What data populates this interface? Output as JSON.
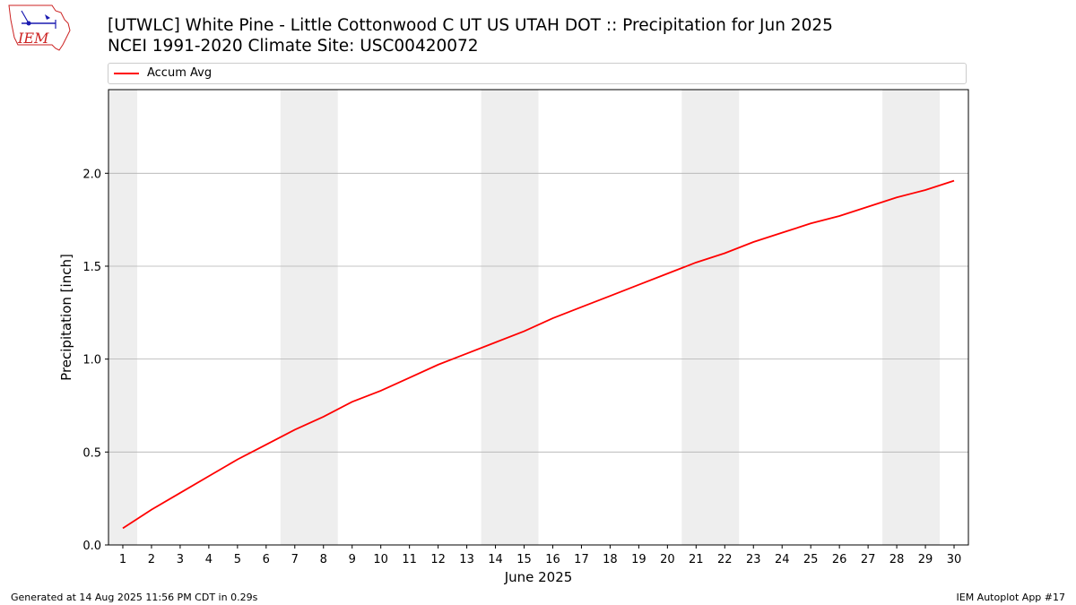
{
  "header": {
    "title_line1": "[UTWLC] White Pine - Little Cottonwood C UT US UTAH DOT :: Precipitation for Jun 2025",
    "title_line2": "NCEI 1991-2020 Climate Site: USC00420072"
  },
  "logo": {
    "text": "IEM",
    "icon": "iem-logo-icon"
  },
  "footer": {
    "generated": "Generated at 14 Aug 2025 11:56 PM CDT in 0.29s",
    "app": "IEM Autoplot App #17"
  },
  "colors": {
    "series": "#ff0000",
    "weekend_band": "#eeeeee",
    "grid": "#b0b0b0"
  },
  "chart_data": {
    "type": "line",
    "xlabel": "June 2025",
    "ylabel": "Precipitation [inch]",
    "xlim": [
      0.5,
      30.5
    ],
    "ylim": [
      0,
      2.45
    ],
    "yticks": [
      0.0,
      0.5,
      1.0,
      1.5,
      2.0
    ],
    "ytick_labels": [
      "0.0",
      "0.5",
      "1.0",
      "1.5",
      "2.0"
    ],
    "xticks": [
      1,
      2,
      3,
      4,
      5,
      6,
      7,
      8,
      9,
      10,
      11,
      12,
      13,
      14,
      15,
      16,
      17,
      18,
      19,
      20,
      21,
      22,
      23,
      24,
      25,
      26,
      27,
      28,
      29,
      30
    ],
    "grid": "horizontal",
    "legend_position": "top",
    "shaded_day_ranges": [
      [
        1,
        1
      ],
      [
        7,
        8
      ],
      [
        14,
        15
      ],
      [
        21,
        22
      ],
      [
        28,
        29
      ]
    ],
    "series": [
      {
        "name": "Accum Avg",
        "color": "#ff0000",
        "x": [
          1,
          2,
          3,
          4,
          5,
          6,
          7,
          8,
          9,
          10,
          11,
          12,
          13,
          14,
          15,
          16,
          17,
          18,
          19,
          20,
          21,
          22,
          23,
          24,
          25,
          26,
          27,
          28,
          29,
          30
        ],
        "values": [
          0.09,
          0.19,
          0.28,
          0.37,
          0.46,
          0.54,
          0.62,
          0.69,
          0.77,
          0.83,
          0.9,
          0.97,
          1.03,
          1.09,
          1.15,
          1.22,
          1.28,
          1.34,
          1.4,
          1.46,
          1.52,
          1.57,
          1.63,
          1.68,
          1.73,
          1.77,
          1.82,
          1.87,
          1.91,
          1.96
        ]
      }
    ]
  }
}
